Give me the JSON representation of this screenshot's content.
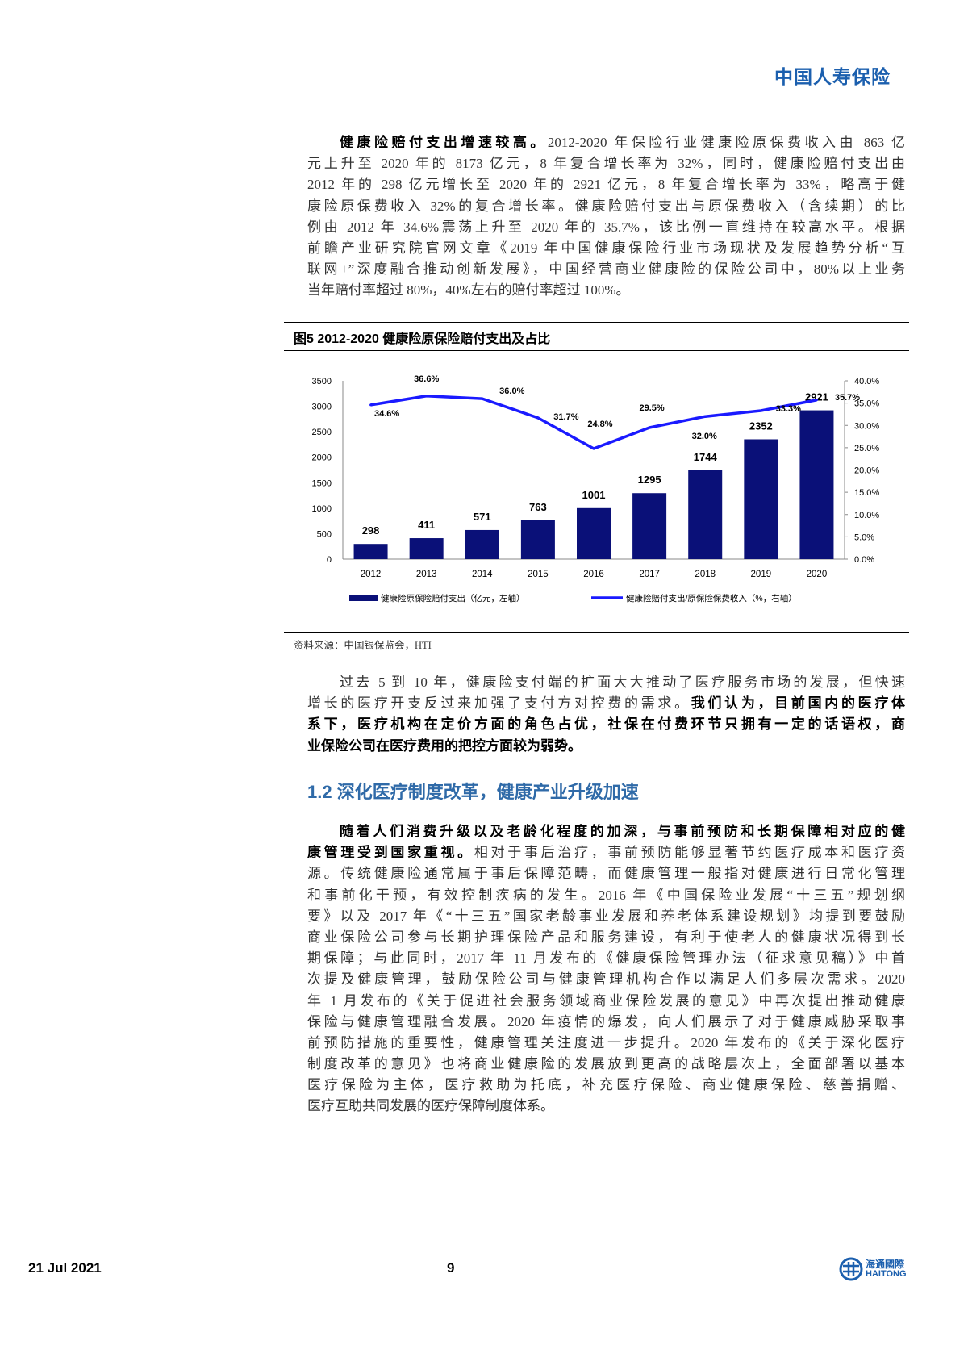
{
  "header": {
    "brand": "中国人寿保险"
  },
  "paragraphs": [
    {
      "lines": [
        [
          [
            "b",
            "健康险赔付支出增速较高。"
          ],
          [
            "n",
            "2012-2020 年保险行业健康险原保费收入由 863 亿"
          ]
        ],
        [
          [
            "n",
            "元上升至 2020 年的 8173 亿元，8 年复合增长率为 32%，同时，健康险赔付支出由"
          ]
        ],
        [
          [
            "n",
            "2012 年的 298 亿元增长至 2020 年的 2921 亿元，8 年复合增长率为 33%，略高于健"
          ]
        ],
        [
          [
            "n",
            "康险原保费收入 32%的复合增长率。健康险赔付支出与原保费收入（含续期）的比"
          ]
        ],
        [
          [
            "n",
            "例由 2012 年 34.6%震荡上升至 2020 年的 35.7%，该比例一直维持在较高水平。根据"
          ]
        ],
        [
          [
            "n",
            "前瞻产业研究院官网文章《2019 年中国健康保险行业市场现状及发展趋势分析“互"
          ]
        ],
        [
          [
            "n",
            "联网+”深度融合推动创新发展》，中国经营商业健康险的保险公司中，80%以上业务"
          ]
        ],
        [
          [
            "n",
            "当年赔付率超过 80%，40%左右的赔付率超过 100%。"
          ]
        ]
      ]
    },
    {
      "lines": [
        [
          [
            "n",
            "过去 5 到 10 年，健康险支付端的扩面大大推动了医疗服务市场的发展，但快速"
          ]
        ],
        [
          [
            "n",
            "增长的医疗开支反过来加强了支付方对控费的需求。"
          ],
          [
            "b",
            "我们认为，目前国内的医疗体"
          ]
        ],
        [
          [
            "b",
            "系下，医疗机构在定价方面的角色占优，社保在付费环节只拥有一定的话语权，商"
          ]
        ],
        [
          [
            "b",
            "业保险公司在医疗费用的把控方面较为弱势。"
          ]
        ]
      ]
    },
    {
      "lines": [
        [
          [
            "b",
            "随着人们消费升级以及老龄化程度的加深，与事前预防和长期保障相对应的健"
          ]
        ],
        [
          [
            "b",
            "康管理受到国家重视。"
          ],
          [
            "n",
            "相对于事后治疗，事前预防能够显著节约医疗成本和医疗资"
          ]
        ],
        [
          [
            "n",
            "源。传统健康险通常属于事后保障范畴，而健康管理一般指对健康进行日常化管理"
          ]
        ],
        [
          [
            "n",
            "和事前化干预，有效控制疾病的发生。2016 年《中国保险业发展“十三五”规划纲"
          ]
        ],
        [
          [
            "n",
            "要》以及 2017 年《“十三五”国家老龄事业发展和养老体系建设规划》均提到要鼓励"
          ]
        ],
        [
          [
            "n",
            "商业保险公司参与长期护理保险产品和服务建设，有利于使老人的健康状况得到长"
          ]
        ],
        [
          [
            "n",
            "期保障；与此同时，2017 年 11 月发布的《健康保险管理办法（征求意见稿）》中首"
          ]
        ],
        [
          [
            "n",
            "次提及健康管理，鼓励保险公司与健康管理机构合作以满足人们多层次需求。2020"
          ]
        ],
        [
          [
            "n",
            "年 1 月发布的《关于促进社会服务领域商业保险发展的意见》中再次提出推动健康"
          ]
        ],
        [
          [
            "n",
            "保险与健康管理融合发展。2020 年疫情的爆发，向人们展示了对于健康威胁采取事"
          ]
        ],
        [
          [
            "n",
            "前预防措施的重要性，健康管理关注度进一步提升。2020 年发布的《关于深化医疗"
          ]
        ],
        [
          [
            "n",
            "制度改革的意见》也将商业健康险的发展放到更高的战略层次上，全面部署以基本"
          ]
        ],
        [
          [
            "n",
            "医疗保险为主体，医疗救助为托底，补充医疗保险、商业健康保险、慈善捐赠、"
          ]
        ],
        [
          [
            "n",
            "医疗互助共同发展的医疗保障制度体系。"
          ]
        ]
      ]
    }
  ],
  "figure": {
    "title": "图5  2012-2020 健康险原保险赔付支出及占比",
    "source": "资料来源：中国银保监会，HTI"
  },
  "section_heading": "1.2 深化医疗制度改革，健康产业升级加速",
  "chart_data": {
    "type": "bar+line",
    "categories": [
      "2012",
      "2013",
      "2014",
      "2015",
      "2016",
      "2017",
      "2018",
      "2019",
      "2020"
    ],
    "series": [
      {
        "name": "健康险原保险赔付支出（亿元，左轴）",
        "type": "bar",
        "axis": "left",
        "color": "#0a1078",
        "values": [
          298,
          411,
          571,
          763,
          1001,
          1295,
          1744,
          2352,
          2921
        ],
        "labels": [
          "298",
          "411",
          "571",
          "763",
          "1001",
          "1295",
          "1744",
          "2352",
          "2921"
        ]
      },
      {
        "name": "健康险赔付支出/原保险保费收入（%，右轴）",
        "type": "line",
        "axis": "right",
        "color": "#1a1aff",
        "values": [
          34.6,
          36.6,
          36.0,
          31.7,
          24.8,
          29.5,
          32.0,
          33.3,
          35.7
        ],
        "labels": [
          "34.6%",
          "36.6%",
          "36.0%",
          "31.7%",
          "24.8%",
          "29.5%",
          "32.0%",
          "33.3%",
          "35.7%"
        ]
      }
    ],
    "left_axis": {
      "range": [
        0,
        3500
      ],
      "ticks": [
        "0",
        "500",
        "1000",
        "1500",
        "2000",
        "2500",
        "3000",
        "3500"
      ]
    },
    "right_axis": {
      "range": [
        0,
        40
      ],
      "ticks": [
        "0.0%",
        "5.0%",
        "10.0%",
        "15.0%",
        "20.0%",
        "25.0%",
        "30.0%",
        "35.0%",
        "40.0%"
      ]
    },
    "grid": false,
    "legend_position": "bottom"
  },
  "footer": {
    "date": "21 Jul 2021",
    "page": "9",
    "logo_cn": "海通國際",
    "logo_en": "HAITONG"
  }
}
